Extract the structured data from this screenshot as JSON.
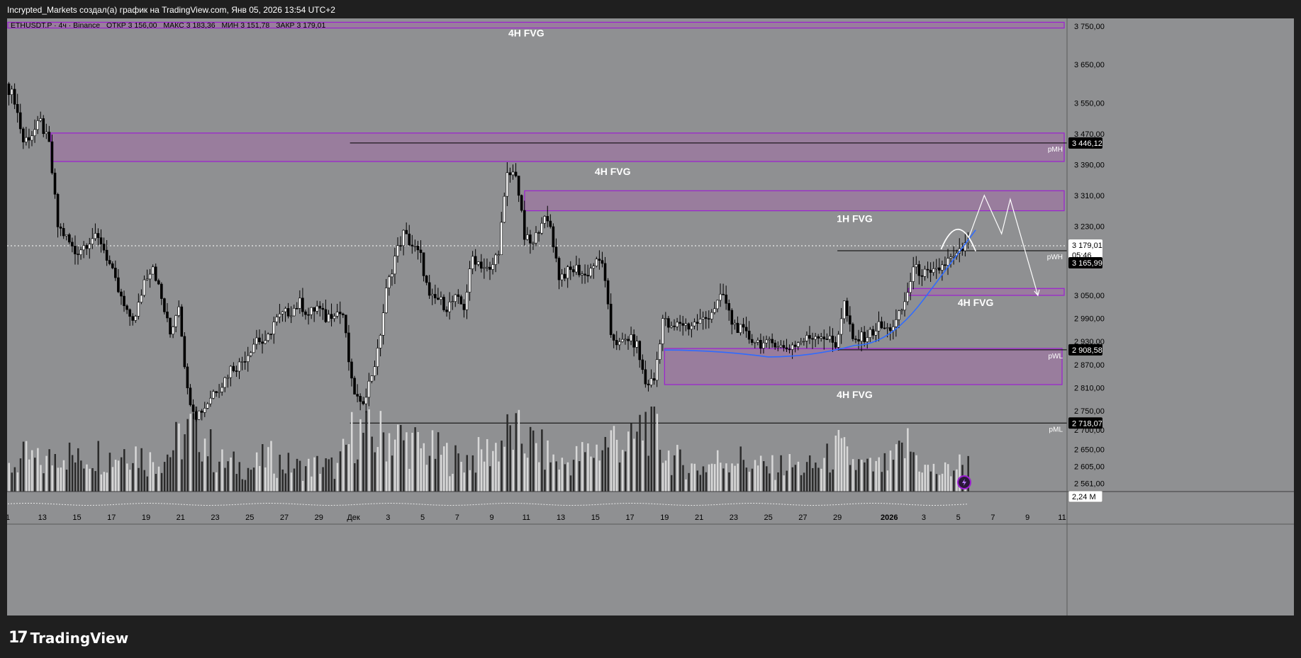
{
  "header": {
    "title": "Incrypted_Markets создал(а) график на TradingView.com, Янв 05, 2026 13:54 UTC+2"
  },
  "legend": {
    "symbol": "ETHUSDT.P · 4ч · Binance",
    "open_label": "ОТКР",
    "open": "3 156,00",
    "high_label": "МАКС",
    "high": "3 183,36",
    "low_label": "МИН",
    "low": "3 151,78",
    "close_label": "ЗАКР",
    "close": "3 179,01"
  },
  "footer": {
    "logo_mark": "17",
    "logo_text": "TradingView"
  },
  "colors": {
    "background": "#8f9092",
    "fvg_fill": "#9b7a9f",
    "fvg_border": "#9c1fd1",
    "curve": "#2f6bff",
    "level_line": "#000000",
    "current_price_tag": "#ffffff",
    "level_tag": "#000000"
  },
  "chart_data": {
    "type": "candlestick",
    "symbol": "ETHUSDT.P",
    "timeframe": "4ч",
    "exchange": "Binance",
    "ylim": [
      2540,
      3770
    ],
    "y_ticks": [
      3750,
      3650,
      3550,
      3470,
      3390,
      3310,
      3230,
      3050,
      2990,
      2930,
      2870,
      2810,
      2750,
      2700,
      2650,
      2605,
      2561
    ],
    "y_tick_labels": [
      "3 750,00",
      "3 650,00",
      "3 550,00",
      "3 470,00",
      "3 390,00",
      "3 310,00",
      "3 230,00",
      "3 050,00",
      "2 990,00",
      "2 930,00",
      "2 870,00",
      "2 810,00",
      "2 750,00",
      "2 700,00",
      "2 650,00",
      "2 605,00",
      "2 561,00"
    ],
    "x_day_start": 11,
    "x_day_end": 72,
    "x_ticks": [
      {
        "day": 11,
        "label": "1"
      },
      {
        "day": 13,
        "label": "13"
      },
      {
        "day": 15,
        "label": "15"
      },
      {
        "day": 17,
        "label": "17"
      },
      {
        "day": 19,
        "label": "19"
      },
      {
        "day": 21,
        "label": "21"
      },
      {
        "day": 23,
        "label": "23"
      },
      {
        "day": 25,
        "label": "25"
      },
      {
        "day": 27,
        "label": "27"
      },
      {
        "day": 29,
        "label": "29"
      },
      {
        "day": 31,
        "label": "Дек"
      },
      {
        "day": 33,
        "label": "3"
      },
      {
        "day": 35,
        "label": "5"
      },
      {
        "day": 37,
        "label": "7"
      },
      {
        "day": 39,
        "label": "9"
      },
      {
        "day": 41,
        "label": "11"
      },
      {
        "day": 43,
        "label": "13"
      },
      {
        "day": 45,
        "label": "15"
      },
      {
        "day": 47,
        "label": "17"
      },
      {
        "day": 49,
        "label": "19"
      },
      {
        "day": 51,
        "label": "21"
      },
      {
        "day": 53,
        "label": "23"
      },
      {
        "day": 55,
        "label": "25"
      },
      {
        "day": 57,
        "label": "27"
      },
      {
        "day": 59,
        "label": "29"
      },
      {
        "day": 62,
        "label": "2026"
      },
      {
        "day": 64,
        "label": "3"
      },
      {
        "day": 66,
        "label": "5"
      },
      {
        "day": 68,
        "label": "7"
      },
      {
        "day": 70,
        "label": "9"
      },
      {
        "day": 72,
        "label": "11"
      }
    ],
    "price_path": [
      [
        11,
        3600
      ],
      [
        11.5,
        3560
      ],
      [
        12,
        3450
      ],
      [
        12.5,
        3470
      ],
      [
        13,
        3500
      ],
      [
        13.5,
        3440
      ],
      [
        14,
        3230
      ],
      [
        14.5,
        3200
      ],
      [
        15,
        3160
      ],
      [
        15.5,
        3180
      ],
      [
        16,
        3200
      ],
      [
        16.5,
        3190
      ],
      [
        17,
        3130
      ],
      [
        17.5,
        3060
      ],
      [
        18,
        3000
      ],
      [
        18.5,
        2990
      ],
      [
        19,
        3090
      ],
      [
        19.5,
        3130
      ],
      [
        20,
        3040
      ],
      [
        20.5,
        2950
      ],
      [
        21,
        3030
      ],
      [
        21.5,
        2800
      ],
      [
        22,
        2740
      ],
      [
        22.5,
        2760
      ],
      [
        23,
        2800
      ],
      [
        23.5,
        2820
      ],
      [
        24,
        2860
      ],
      [
        24.5,
        2870
      ],
      [
        25,
        2900
      ],
      [
        25.5,
        2940
      ],
      [
        26,
        2920
      ],
      [
        26.5,
        2980
      ],
      [
        27,
        3000
      ],
      [
        27.5,
        3010
      ],
      [
        28,
        3030
      ],
      [
        28.5,
        3000
      ],
      [
        29,
        3020
      ],
      [
        29.5,
        2990
      ],
      [
        30,
        3010
      ],
      [
        30.5,
        3000
      ],
      [
        31,
        2820
      ],
      [
        31.5,
        2760
      ],
      [
        32,
        2820
      ],
      [
        32.5,
        2900
      ],
      [
        33,
        3060
      ],
      [
        33.5,
        3150
      ],
      [
        34,
        3210
      ],
      [
        34.5,
        3180
      ],
      [
        35,
        3150
      ],
      [
        35.5,
        3040
      ],
      [
        36,
        3040
      ],
      [
        36.5,
        3020
      ],
      [
        37,
        3040
      ],
      [
        37.5,
        3020
      ],
      [
        38,
        3150
      ],
      [
        38.5,
        3130
      ],
      [
        39,
        3110
      ],
      [
        39.5,
        3170
      ],
      [
        40,
        3360
      ],
      [
        40.5,
        3370
      ],
      [
        41,
        3200
      ],
      [
        41.5,
        3180
      ],
      [
        42,
        3250
      ],
      [
        42.5,
        3230
      ],
      [
        43,
        3100
      ],
      [
        43.5,
        3110
      ],
      [
        44,
        3120
      ],
      [
        44.5,
        3100
      ],
      [
        45,
        3130
      ],
      [
        45.5,
        3140
      ],
      [
        46,
        2950
      ],
      [
        46.5,
        2920
      ],
      [
        47,
        2940
      ],
      [
        47.5,
        2920
      ],
      [
        48,
        2820
      ],
      [
        48.5,
        2830
      ],
      [
        49,
        2990
      ],
      [
        49.5,
        2960
      ],
      [
        50,
        2980
      ],
      [
        50.5,
        2970
      ],
      [
        51,
        2980
      ],
      [
        51.5,
        2990
      ],
      [
        52,
        3020
      ],
      [
        52.5,
        3050
      ],
      [
        53,
        2980
      ],
      [
        53.5,
        2960
      ],
      [
        54,
        2940
      ],
      [
        54.5,
        2930
      ],
      [
        55,
        2920
      ],
      [
        55.5,
        2930
      ],
      [
        56,
        2910
      ],
      [
        56.5,
        2920
      ],
      [
        57,
        2930
      ],
      [
        57.5,
        2940
      ],
      [
        58,
        2950
      ],
      [
        58.5,
        2940
      ],
      [
        59,
        2920
      ],
      [
        59.5,
        3030
      ],
      [
        60,
        2930
      ],
      [
        60.5,
        2940
      ],
      [
        61,
        2950
      ],
      [
        61.5,
        2970
      ],
      [
        62,
        2960
      ],
      [
        62.5,
        2980
      ],
      [
        63,
        3030
      ],
      [
        63.5,
        3120
      ],
      [
        64,
        3110
      ],
      [
        64.5,
        3100
      ],
      [
        65,
        3120
      ],
      [
        65.5,
        3140
      ],
      [
        66,
        3150
      ],
      [
        66.5,
        3179
      ]
    ],
    "volume_path": [
      [
        11,
        0.3
      ],
      [
        12,
        0.45
      ],
      [
        13,
        0.35
      ],
      [
        14,
        0.55
      ],
      [
        15,
        0.4
      ],
      [
        16,
        0.5
      ],
      [
        17,
        0.45
      ],
      [
        18,
        0.6
      ],
      [
        19,
        0.4
      ],
      [
        20,
        0.45
      ],
      [
        21,
        0.7
      ],
      [
        22,
        0.85
      ],
      [
        23,
        0.4
      ],
      [
        24,
        0.35
      ],
      [
        25,
        0.3
      ],
      [
        26,
        0.45
      ],
      [
        27,
        0.35
      ],
      [
        28,
        0.3
      ],
      [
        29,
        0.35
      ],
      [
        30,
        0.3
      ],
      [
        31,
        0.8
      ],
      [
        32,
        0.7
      ],
      [
        33,
        0.75
      ],
      [
        34,
        0.65
      ],
      [
        35,
        0.55
      ],
      [
        36,
        0.5
      ],
      [
        37,
        0.4
      ],
      [
        38,
        0.45
      ],
      [
        39,
        0.55
      ],
      [
        40,
        0.75
      ],
      [
        41,
        0.65
      ],
      [
        42,
        0.5
      ],
      [
        43,
        0.35
      ],
      [
        44,
        0.45
      ],
      [
        45,
        0.55
      ],
      [
        46,
        0.7
      ],
      [
        47,
        0.6
      ],
      [
        48,
        0.95
      ],
      [
        49,
        0.5
      ],
      [
        50,
        0.35
      ],
      [
        51,
        0.3
      ],
      [
        52,
        0.4
      ],
      [
        53,
        0.45
      ],
      [
        54,
        0.35
      ],
      [
        55,
        0.3
      ],
      [
        56,
        0.35
      ],
      [
        57,
        0.3
      ],
      [
        58,
        0.35
      ],
      [
        59,
        0.55
      ],
      [
        60,
        0.35
      ],
      [
        61,
        0.3
      ],
      [
        62,
        0.35
      ],
      [
        63,
        0.6
      ],
      [
        64,
        0.3
      ],
      [
        65,
        0.25
      ],
      [
        66,
        0.35
      ]
    ],
    "volume_value_label": "2,24 M",
    "zones": [
      {
        "label": "4H FVG",
        "top": 3760,
        "bottom": 3745,
        "start_day": 11,
        "end_day": 72.3,
        "label_day": 41,
        "label_price": 3730
      },
      {
        "label": "4H FVG",
        "top": 3472,
        "bottom": 3398,
        "start_day": 13.5,
        "end_day": 72.3,
        "label_day": 46,
        "label_price": 3370
      },
      {
        "label": "1H FVG",
        "top": 3322,
        "bottom": 3270,
        "start_day": 40.9,
        "end_day": 72.3,
        "label_day": 60,
        "label_price": 3248
      },
      {
        "label": "4H FVG",
        "top": 3068,
        "bottom": 3050,
        "start_day": 63.1,
        "end_day": 72.3,
        "label_day": 67,
        "label_price": 3030
      },
      {
        "label": "4H FVG",
        "top": 2912,
        "bottom": 2818,
        "start_day": 49,
        "end_day": 72,
        "label_day": 60,
        "label_price": 2790
      }
    ],
    "levels": [
      {
        "name": "pMH",
        "value": 3446.12,
        "label": "3 446,12",
        "start_day": 30.8
      },
      {
        "name": "pWH",
        "value": 3165.99,
        "label": "3 165,99",
        "start_day": 59
      },
      {
        "name": "pWL",
        "value": 2908.58,
        "label": "2 908,58",
        "start_day": 59
      },
      {
        "name": "pML",
        "value": 2718.07,
        "label": "2 718,07",
        "start_day": 30.8
      }
    ],
    "current_price": {
      "value": 3179.01,
      "label": "3 179,01",
      "countdown": "05:46"
    },
    "projection_path": [
      [
        66.6,
        3200
      ],
      [
        67.5,
        3310
      ],
      [
        68.5,
        3210
      ],
      [
        69,
        3300
      ],
      [
        70.6,
        3050
      ]
    ],
    "curve_path": [
      [
        49,
        2908
      ],
      [
        55,
        2890
      ],
      [
        60,
        2920
      ],
      [
        64,
        3040
      ],
      [
        67,
        3220
      ]
    ],
    "arc_path": [
      [
        65,
        3170
      ],
      [
        66,
        3230
      ],
      [
        67,
        3165
      ]
    ]
  }
}
